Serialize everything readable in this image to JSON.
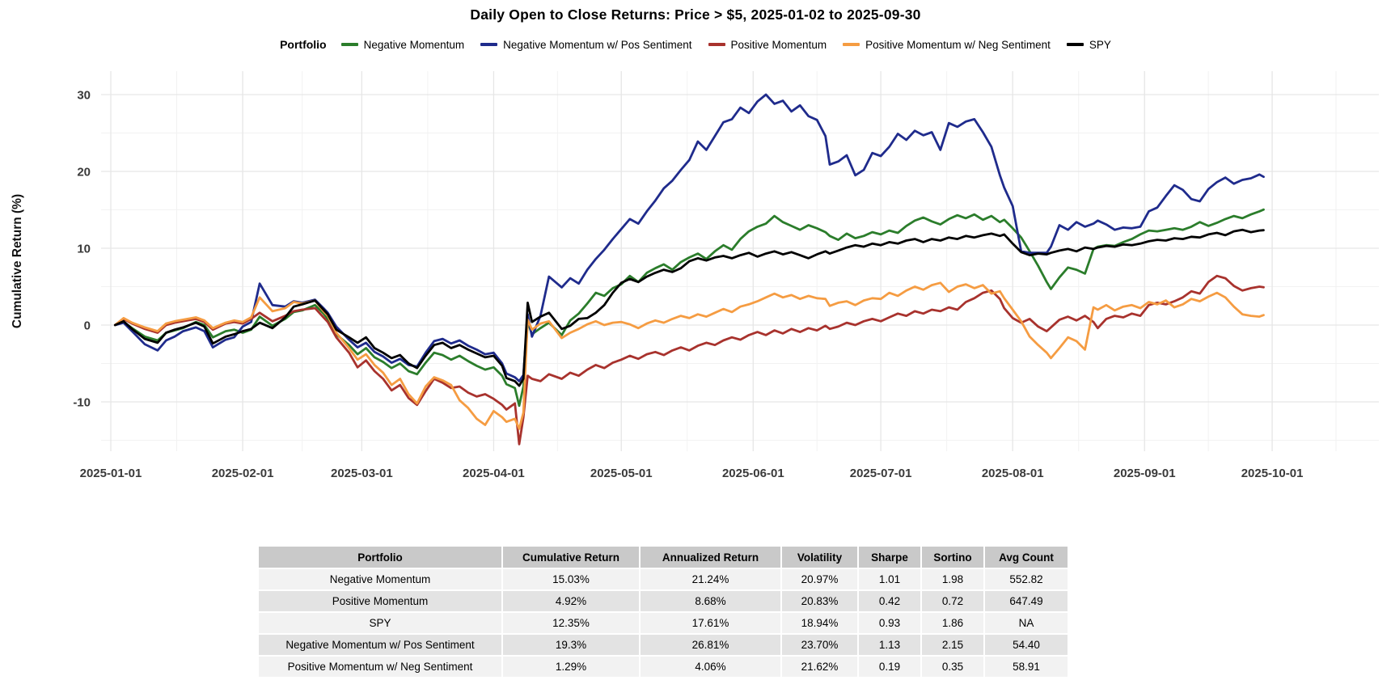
{
  "title": "Daily Open to Close Returns: Price > $5, 2025-01-02 to 2025-09-30",
  "legend": {
    "label": "Portfolio",
    "items": [
      {
        "name": "Negative Momentum",
        "color": "#2b7d2b"
      },
      {
        "name": "Negative Momentum w/ Pos Sentiment",
        "color": "#1f2b8c"
      },
      {
        "name": "Positive Momentum",
        "color": "#a8322d"
      },
      {
        "name": "Positive Momentum w/ Neg Sentiment",
        "color": "#f59c42"
      },
      {
        "name": "SPY",
        "color": "#000000"
      }
    ]
  },
  "chart_data": {
    "type": "line",
    "ylabel": "Cumulative Return (%)",
    "yticks": [
      30,
      20,
      10,
      0,
      -10
    ],
    "minor_yticks": [
      25,
      15,
      5,
      -5,
      -15
    ],
    "ylim": [
      -16.4,
      33
    ],
    "x_tick_labels": [
      "2025-01-01",
      "2025-02-01",
      "2025-03-01",
      "2025-04-01",
      "2025-05-01",
      "2025-06-01",
      "2025-07-01",
      "2025-08-01",
      "2025-09-01",
      "2025-10-01"
    ],
    "x_tick_days": [
      0,
      31,
      59,
      90,
      120,
      151,
      181,
      212,
      243,
      273
    ],
    "minor_x_days": [
      15.5,
      45,
      74.5,
      105,
      135.5,
      166,
      196.5,
      227.5,
      258,
      288
    ],
    "grid": true,
    "legend_position": "top",
    "x_days": [
      1,
      3,
      5,
      8,
      11,
      13,
      15,
      17,
      20,
      22,
      24,
      27,
      29,
      31,
      33,
      35,
      38,
      41,
      43,
      45,
      48,
      50,
      51,
      53,
      56,
      58,
      60,
      62,
      64,
      66,
      68,
      70,
      72,
      74,
      76,
      78,
      80,
      82,
      84,
      86,
      88,
      90,
      92,
      93,
      95,
      96,
      97,
      98,
      99,
      101,
      103,
      106,
      108,
      110,
      112,
      114,
      116,
      118,
      120,
      122,
      124,
      126,
      128,
      130,
      132,
      134,
      136,
      138,
      140,
      142,
      144,
      146,
      148,
      150,
      152,
      154,
      156,
      158,
      160,
      162,
      164,
      166,
      168,
      169,
      171,
      173,
      175,
      177,
      179,
      181,
      183,
      185,
      187,
      189,
      191,
      193,
      195,
      197,
      199,
      201,
      203,
      205,
      207,
      209,
      210,
      212,
      214,
      216,
      218,
      220,
      221,
      223,
      225,
      227,
      229,
      231,
      232,
      234,
      236,
      238,
      240,
      242,
      244,
      246,
      248,
      250,
      252,
      254,
      256,
      258,
      260,
      262,
      264,
      266,
      268,
      270,
      271
    ],
    "series": [
      {
        "name": "Negative Momentum",
        "color": "#2b7d2b",
        "values": [
          0,
          0.4,
          -0.4,
          -1.5,
          -2.0,
          -1.0,
          -0.7,
          -0.4,
          0.4,
          0.0,
          -1.6,
          -0.8,
          -0.6,
          -1.0,
          -0.6,
          1.1,
          -0.1,
          0.8,
          1.7,
          1.9,
          2.6,
          1.5,
          0.8,
          -1.2,
          -2.6,
          -3.8,
          -3.0,
          -4.2,
          -4.8,
          -5.6,
          -5.0,
          -6.0,
          -6.4,
          -4.9,
          -3.6,
          -3.9,
          -4.5,
          -4.0,
          -4.7,
          -5.3,
          -5.8,
          -5.5,
          -6.6,
          -7.7,
          -8.2,
          -10.5,
          -8.0,
          0.4,
          -1.2,
          -0.4,
          0.3,
          -1.3,
          0.6,
          1.5,
          2.8,
          4.2,
          3.8,
          4.8,
          5.3,
          6.4,
          5.6,
          6.8,
          7.4,
          7.9,
          7.2,
          8.2,
          8.8,
          9.3,
          8.6,
          9.6,
          10.4,
          9.8,
          11.2,
          12.2,
          12.8,
          13.2,
          14.2,
          13.4,
          12.9,
          12.4,
          13.0,
          12.6,
          12.1,
          11.6,
          11.1,
          11.9,
          11.3,
          11.6,
          12.1,
          11.8,
          12.3,
          12.0,
          12.9,
          13.6,
          14.0,
          13.5,
          13.1,
          13.8,
          14.3,
          13.9,
          14.4,
          13.7,
          14.2,
          13.4,
          13.7,
          12.6,
          11.4,
          9.6,
          7.7,
          5.6,
          4.7,
          6.2,
          7.5,
          7.2,
          6.7,
          9.9,
          10.2,
          10.4,
          10.3,
          10.8,
          11.2,
          11.8,
          12.3,
          12.2,
          12.4,
          12.6,
          12.4,
          12.8,
          13.4,
          12.9,
          13.3,
          13.8,
          14.2,
          13.9,
          14.4,
          14.8,
          15.03
        ]
      },
      {
        "name": "Negative Momentum w/ Pos Sentiment",
        "color": "#1f2b8c",
        "values": [
          0,
          0.3,
          -0.8,
          -2.5,
          -3.3,
          -2.0,
          -1.5,
          -0.8,
          -0.3,
          -0.8,
          -2.9,
          -1.9,
          -1.6,
          -0.2,
          0.4,
          5.4,
          2.6,
          2.4,
          3.1,
          2.9,
          3.3,
          2.2,
          1.6,
          -0.2,
          -1.9,
          -2.9,
          -2.3,
          -3.5,
          -4.1,
          -4.9,
          -4.4,
          -5.2,
          -5.4,
          -3.6,
          -2.1,
          -1.8,
          -2.4,
          -2.0,
          -2.7,
          -3.2,
          -3.8,
          -3.6,
          -5.0,
          -6.3,
          -6.8,
          -7.3,
          -6.5,
          1.4,
          -1.5,
          1.2,
          6.3,
          4.9,
          6.1,
          5.4,
          7.2,
          8.6,
          9.8,
          11.2,
          12.5,
          13.8,
          13.2,
          14.8,
          16.2,
          17.8,
          18.8,
          20.2,
          21.5,
          23.9,
          22.8,
          24.6,
          26.4,
          26.8,
          28.3,
          27.6,
          29.1,
          30.0,
          28.8,
          29.2,
          27.8,
          28.6,
          27.2,
          26.7,
          24.6,
          20.9,
          21.3,
          22.1,
          19.5,
          20.2,
          22.4,
          22.0,
          23.2,
          24.9,
          24.1,
          25.3,
          24.7,
          25.1,
          22.8,
          26.3,
          25.8,
          26.5,
          26.8,
          25.1,
          23.2,
          19.5,
          17.9,
          15.5,
          9.6,
          9.4,
          9.4,
          9.4,
          10.2,
          13.0,
          12.4,
          13.4,
          12.8,
          13.2,
          13.6,
          13.1,
          12.4,
          12.7,
          12.6,
          12.8,
          14.8,
          15.3,
          16.8,
          18.2,
          17.6,
          16.4,
          16.1,
          17.7,
          18.6,
          19.2,
          18.4,
          18.9,
          19.1,
          19.6,
          19.3
        ]
      },
      {
        "name": "Positive Momentum",
        "color": "#a8322d",
        "values": [
          0,
          0.8,
          0.2,
          -0.5,
          -1.0,
          0.0,
          0.3,
          0.5,
          0.8,
          0.4,
          -0.6,
          0.2,
          0.4,
          0.2,
          0.8,
          1.6,
          0.5,
          1.2,
          1.8,
          2.0,
          2.2,
          1.0,
          0.4,
          -1.6,
          -3.6,
          -5.5,
          -4.6,
          -6.0,
          -7.0,
          -8.5,
          -7.8,
          -9.5,
          -10.4,
          -8.6,
          -7.0,
          -7.5,
          -8.2,
          -8.0,
          -8.8,
          -9.3,
          -9.0,
          -9.6,
          -10.4,
          -11.0,
          -10.2,
          -15.5,
          -12.0,
          -6.6,
          -7.0,
          -7.3,
          -6.4,
          -7.0,
          -6.2,
          -6.6,
          -5.8,
          -5.2,
          -5.6,
          -4.9,
          -4.5,
          -4.0,
          -4.4,
          -3.8,
          -3.5,
          -3.9,
          -3.3,
          -2.9,
          -3.3,
          -2.7,
          -2.3,
          -2.6,
          -2.0,
          -1.6,
          -1.9,
          -1.3,
          -0.9,
          -1.3,
          -0.7,
          -1.1,
          -0.5,
          -0.9,
          -0.4,
          -0.7,
          -0.1,
          -0.5,
          -0.2,
          0.3,
          0.0,
          0.5,
          0.8,
          0.5,
          1.0,
          1.5,
          1.2,
          1.8,
          1.5,
          2.0,
          1.8,
          2.3,
          2.0,
          3.0,
          3.5,
          4.2,
          4.5,
          3.4,
          2.2,
          0.9,
          0.3,
          0.8,
          -0.2,
          -0.8,
          -0.3,
          0.7,
          1.1,
          0.6,
          1.2,
          0.4,
          -0.4,
          0.8,
          1.2,
          1.0,
          1.5,
          1.2,
          2.6,
          2.9,
          2.7,
          3.1,
          3.6,
          4.4,
          4.1,
          5.6,
          6.4,
          6.1,
          5.1,
          4.5,
          4.8,
          5.0,
          4.92
        ]
      },
      {
        "name": "Positive Momentum w/ Neg Sentiment",
        "color": "#f59c42",
        "values": [
          0,
          0.9,
          0.3,
          -0.3,
          -0.8,
          0.2,
          0.5,
          0.7,
          1.0,
          0.6,
          -0.4,
          0.3,
          0.6,
          0.4,
          1.0,
          3.6,
          1.8,
          2.2,
          3.0,
          2.8,
          3.2,
          1.8,
          1.2,
          -1.0,
          -3.0,
          -4.5,
          -3.8,
          -5.2,
          -6.2,
          -7.8,
          -7.0,
          -9.0,
          -10.2,
          -8.0,
          -6.8,
          -7.2,
          -7.8,
          -9.8,
          -10.8,
          -12.2,
          -13.0,
          -11.2,
          -12.0,
          -12.6,
          -12.2,
          -13.5,
          -11.4,
          0.7,
          -0.6,
          0.2,
          0.5,
          -1.7,
          -1.0,
          -0.5,
          0.1,
          0.5,
          0.0,
          0.3,
          0.4,
          0.1,
          -0.4,
          0.2,
          0.6,
          0.3,
          0.8,
          1.2,
          0.9,
          1.4,
          1.1,
          1.6,
          2.1,
          1.7,
          2.4,
          2.7,
          3.1,
          3.6,
          4.1,
          3.6,
          3.9,
          3.4,
          3.8,
          3.5,
          3.4,
          2.5,
          2.9,
          3.1,
          2.6,
          3.2,
          3.5,
          3.4,
          4.2,
          3.8,
          4.5,
          5.0,
          4.6,
          5.2,
          5.5,
          4.3,
          5.0,
          5.3,
          4.8,
          5.2,
          4.1,
          4.4,
          3.5,
          2.0,
          0.5,
          -1.5,
          -2.6,
          -3.6,
          -4.3,
          -3.0,
          -1.6,
          -2.1,
          -3.2,
          2.3,
          2.0,
          2.6,
          1.9,
          2.4,
          2.6,
          2.2,
          3.0,
          2.7,
          3.2,
          2.3,
          2.7,
          3.4,
          3.1,
          3.7,
          4.2,
          3.6,
          2.4,
          1.4,
          1.2,
          1.1,
          1.29
        ]
      },
      {
        "name": "SPY",
        "color": "#000000",
        "values": [
          0,
          0.5,
          -0.5,
          -1.8,
          -2.3,
          -1.0,
          -0.6,
          -0.3,
          0.3,
          -0.2,
          -2.4,
          -1.5,
          -1.2,
          -0.8,
          -0.5,
          0.3,
          -0.4,
          1.0,
          2.4,
          2.7,
          3.2,
          2.0,
          1.4,
          -0.6,
          -1.6,
          -2.3,
          -1.6,
          -3.0,
          -3.6,
          -4.3,
          -3.9,
          -5.0,
          -5.6,
          -4.0,
          -2.6,
          -2.3,
          -3.0,
          -2.6,
          -3.2,
          -3.7,
          -4.2,
          -4.0,
          -5.3,
          -6.9,
          -7.3,
          -7.9,
          -7.0,
          2.9,
          0.4,
          1.1,
          1.6,
          -0.5,
          -0.1,
          0.8,
          0.9,
          1.6,
          2.6,
          4.2,
          5.5,
          6.0,
          5.6,
          6.3,
          6.8,
          7.2,
          6.9,
          7.4,
          8.3,
          8.7,
          8.4,
          8.8,
          9.0,
          8.7,
          9.1,
          9.4,
          8.9,
          9.3,
          9.6,
          9.2,
          9.5,
          9.1,
          8.7,
          9.2,
          9.6,
          9.3,
          9.7,
          10.1,
          10.4,
          10.2,
          10.6,
          10.4,
          10.8,
          10.6,
          11.0,
          11.2,
          10.8,
          11.2,
          11.0,
          11.4,
          11.2,
          11.6,
          11.4,
          11.7,
          11.9,
          11.6,
          11.8,
          10.6,
          9.5,
          9.1,
          9.3,
          9.2,
          9.4,
          9.7,
          9.9,
          9.6,
          10.1,
          9.9,
          10.1,
          10.3,
          10.2,
          10.5,
          10.4,
          10.6,
          10.9,
          11.1,
          11.0,
          11.3,
          11.2,
          11.5,
          11.4,
          11.8,
          12.0,
          11.7,
          12.2,
          12.4,
          12.1,
          12.3,
          12.35
        ]
      }
    ]
  },
  "table": {
    "headers": [
      "Portfolio",
      "Cumulative Return",
      "Annualized Return",
      "Volatility",
      "Sharpe",
      "Sortino",
      "Avg Count"
    ],
    "rows": [
      [
        "Negative Momentum",
        "15.03%",
        "21.24%",
        "20.97%",
        "1.01",
        "1.98",
        "552.82"
      ],
      [
        "Positive Momentum",
        "4.92%",
        "8.68%",
        "20.83%",
        "0.42",
        "0.72",
        "647.49"
      ],
      [
        "SPY",
        "12.35%",
        "17.61%",
        "18.94%",
        "0.93",
        "1.86",
        "NA"
      ],
      [
        "Negative Momentum w/ Pos Sentiment",
        "19.3%",
        "26.81%",
        "23.70%",
        "1.13",
        "2.15",
        "54.40"
      ],
      [
        "Positive Momentum w/ Neg Sentiment",
        "1.29%",
        "4.06%",
        "21.62%",
        "0.19",
        "0.35",
        "58.91"
      ]
    ]
  },
  "colors": {
    "grid_major": "#e6e6e6",
    "grid_minor": "#f2f2f2",
    "axis_text": "#3a3a3a",
    "table_header_bg": "#c9c9c9",
    "table_row_odd": "#f2f2f2",
    "table_row_even": "#e3e3e3"
  }
}
